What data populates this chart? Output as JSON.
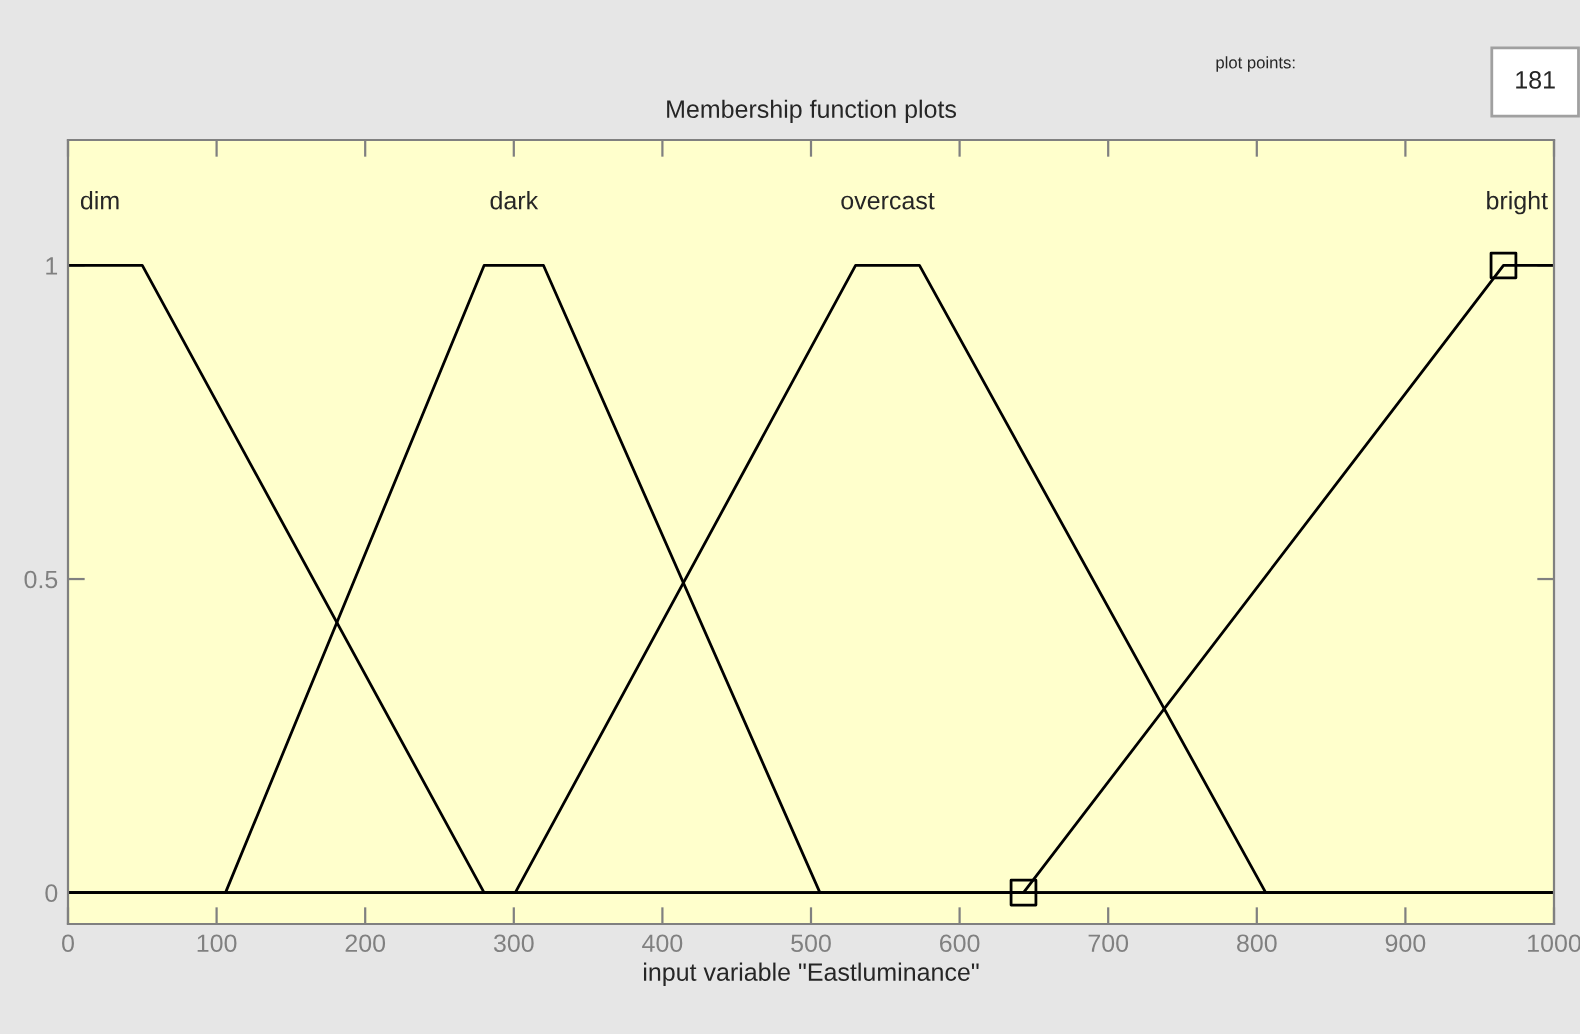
{
  "chart_data": {
    "type": "line",
    "title": "Membership function plots",
    "xlabel": "input variable \"Eastluminance\"",
    "annotations": [
      "plot points:",
      "181"
    ],
    "xlim": [
      0,
      1000
    ],
    "ylim": [
      -0.05,
      1.2
    ],
    "xticks": [
      0,
      100,
      200,
      300,
      400,
      500,
      600,
      700,
      800,
      900,
      1000
    ],
    "yticks": [
      0,
      0.5,
      1
    ],
    "grid": false,
    "legend": false,
    "marker": "none",
    "line_style": "solid",
    "series": [
      {
        "name": "dim",
        "color": "#000000",
        "x": [
          0,
          50,
          280,
          1000
        ],
        "values": [
          1,
          1,
          0,
          0
        ]
      },
      {
        "name": "dark",
        "color": "#000000",
        "x": [
          0,
          106,
          280,
          320,
          506,
          1000
        ],
        "values": [
          0,
          0,
          1,
          1,
          0,
          0
        ]
      },
      {
        "name": "overcast",
        "color": "#000000",
        "x": [
          0,
          301,
          530,
          573,
          806,
          1000
        ],
        "values": [
          0,
          0,
          1,
          1,
          0,
          0
        ]
      },
      {
        "name": "bright",
        "color": "#000000",
        "x": [
          0,
          643,
          966,
          1000
        ],
        "values": [
          0,
          0,
          1,
          1
        ]
      },
      {
        "type": "scatter",
        "marker": "square",
        "color": "#000000",
        "x": [
          643,
          966
        ],
        "values": [
          0,
          1
        ]
      }
    ]
  }
}
